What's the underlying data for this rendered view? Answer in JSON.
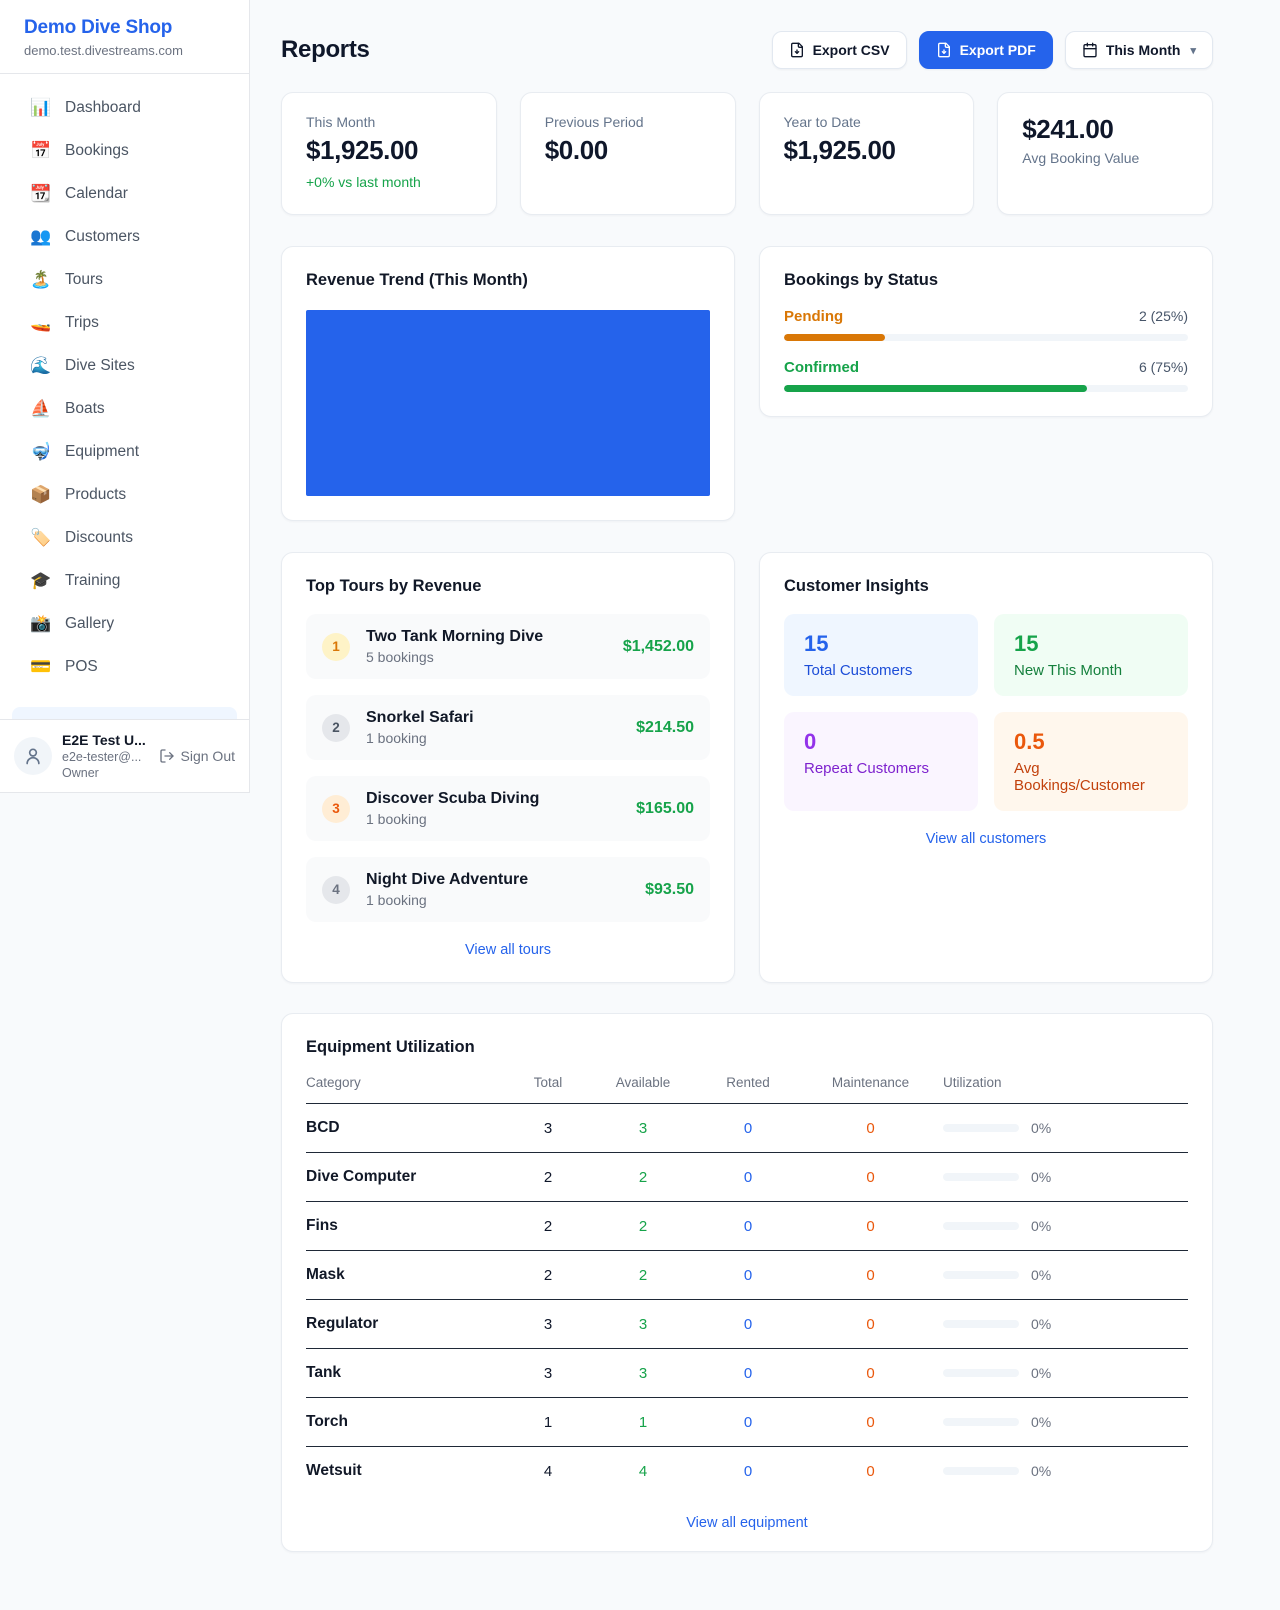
{
  "sidebar": {
    "brand": {
      "name": "Demo Dive Shop",
      "domain": "demo.test.divestreams.com"
    },
    "nav": [
      {
        "label": "Dashboard",
        "icon": "📊"
      },
      {
        "label": "Bookings",
        "icon": "📅"
      },
      {
        "label": "Calendar",
        "icon": "📆"
      },
      {
        "label": "Customers",
        "icon": "👥"
      },
      {
        "label": "Tours",
        "icon": "🏝️"
      },
      {
        "label": "Trips",
        "icon": "🚤"
      },
      {
        "label": "Dive Sites",
        "icon": "🌊"
      },
      {
        "label": "Boats",
        "icon": "⛵"
      },
      {
        "label": "Equipment",
        "icon": "🤿"
      },
      {
        "label": "Products",
        "icon": "📦"
      },
      {
        "label": "Discounts",
        "icon": "🏷️"
      },
      {
        "label": "Training",
        "icon": "🎓"
      },
      {
        "label": "Gallery",
        "icon": "📸"
      },
      {
        "label": "POS",
        "icon": "💳"
      }
    ],
    "user": {
      "name": "E2E Test U...",
      "email": "e2e-tester@...",
      "role": "Owner",
      "sign_out_label": "Sign Out"
    }
  },
  "header": {
    "title": "Reports",
    "export_csv_label": "Export CSV",
    "export_pdf_label": "Export PDF",
    "period_label": "This Month"
  },
  "stats": [
    {
      "label": "This Month",
      "value": "$1,925.00",
      "delta": "+0% vs last month"
    },
    {
      "label": "Previous Period",
      "value": "$0.00"
    },
    {
      "label": "Year to Date",
      "value": "$1,925.00"
    },
    {
      "label": "Avg Booking Value",
      "value": "$241.00"
    }
  ],
  "revenue_trend": {
    "title": "Revenue Trend (This Month)",
    "chart": {
      "type": "bar",
      "appearance": "solid blue block filling plot area",
      "color": "#2563eb"
    }
  },
  "bookings_by_status": {
    "title": "Bookings by Status",
    "rows": [
      {
        "label": "Pending",
        "count": "2 (25%)",
        "pct": 25,
        "color": "#d97706"
      },
      {
        "label": "Confirmed",
        "count": "6 (75%)",
        "pct": 75,
        "color": "#16a34a"
      }
    ]
  },
  "top_tours": {
    "title": "Top Tours by Revenue",
    "items": [
      {
        "rank": "1",
        "name": "Two Tank Morning Dive",
        "bookings": "5 bookings",
        "amount": "$1,452.00"
      },
      {
        "rank": "2",
        "name": "Snorkel Safari",
        "bookings": "1 booking",
        "amount": "$214.50"
      },
      {
        "rank": "3",
        "name": "Discover Scuba Diving",
        "bookings": "1 booking",
        "amount": "$165.00"
      },
      {
        "rank": "4",
        "name": "Night Dive Adventure",
        "bookings": "1 booking",
        "amount": "$93.50"
      }
    ],
    "view_all": "View all tours"
  },
  "customer_insights": {
    "title": "Customer Insights",
    "cards": [
      {
        "value": "15",
        "label": "Total Customers",
        "accent": "#2563eb",
        "bg": "#eff6ff"
      },
      {
        "value": "15",
        "label": "New This Month",
        "accent": "#16a34a",
        "bg": "#f0fdf4"
      },
      {
        "value": "0",
        "label": "Repeat Customers",
        "accent": "#9333ea",
        "bg": "#faf5ff"
      },
      {
        "value": "0.5",
        "label": "Avg Bookings/Customer",
        "accent": "#ea580c",
        "bg": "#fff7ed"
      }
    ],
    "view_all": "View all customers"
  },
  "equipment": {
    "title": "Equipment Utilization",
    "columns": [
      "Category",
      "Total",
      "Available",
      "Rented",
      "Maintenance",
      "Utilization"
    ],
    "status_colors": {
      "available": "#16a34a",
      "rented": "#2563eb",
      "maintenance": "#ea580c"
    },
    "rows": [
      {
        "category": "BCD",
        "total": "3",
        "available": "3",
        "rented": "0",
        "maintenance": "0",
        "utilization": "0%"
      },
      {
        "category": "Dive Computer",
        "total": "2",
        "available": "2",
        "rented": "0",
        "maintenance": "0",
        "utilization": "0%"
      },
      {
        "category": "Fins",
        "total": "2",
        "available": "2",
        "rented": "0",
        "maintenance": "0",
        "utilization": "0%"
      },
      {
        "category": "Mask",
        "total": "2",
        "available": "2",
        "rented": "0",
        "maintenance": "0",
        "utilization": "0%"
      },
      {
        "category": "Regulator",
        "total": "3",
        "available": "3",
        "rented": "0",
        "maintenance": "0",
        "utilization": "0%"
      },
      {
        "category": "Tank",
        "total": "3",
        "available": "3",
        "rented": "0",
        "maintenance": "0",
        "utilization": "0%"
      },
      {
        "category": "Torch",
        "total": "1",
        "available": "1",
        "rented": "0",
        "maintenance": "0",
        "utilization": "0%"
      },
      {
        "category": "Wetsuit",
        "total": "4",
        "available": "4",
        "rented": "0",
        "maintenance": "0",
        "utilization": "0%"
      }
    ],
    "view_all": "View all equipment"
  }
}
